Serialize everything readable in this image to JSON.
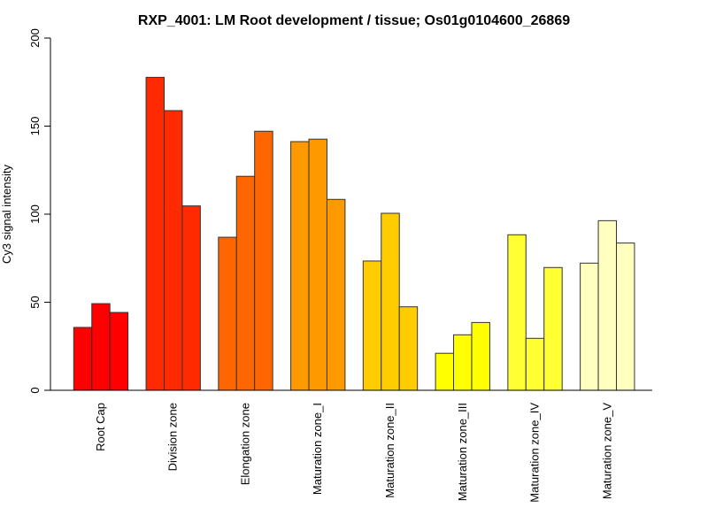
{
  "chart_data": {
    "type": "bar",
    "title": "RXP_4001: LM Root development / tissue; Os01g0104600_26869",
    "xlabel": "",
    "ylabel": "Cy3 signal intensity",
    "ylim": [
      0,
      200
    ],
    "yticks": [
      0,
      50,
      100,
      150,
      200
    ],
    "ytick_labels": [
      "0",
      "50",
      "100",
      "150",
      "200"
    ],
    "grid": false,
    "legend": "none",
    "bars_per_group": 3,
    "categories": [
      "Root Cap",
      "Division zone",
      "Elongation zone",
      "Maturation zone_I",
      "Maturation zone_II",
      "Maturation zone_III",
      "Maturation zone_IV",
      "Maturation zone_V"
    ],
    "group_colors": [
      "#FF0000",
      "#FF2A00",
      "#FF6600",
      "#FF9900",
      "#FFCC00",
      "#FFFF00",
      "#FFFF33",
      "#FFFFBF"
    ],
    "groups": [
      {
        "name": "Root Cap",
        "values": [
          35.7,
          49.2,
          44.2
        ]
      },
      {
        "name": "Division zone",
        "values": [
          177.7,
          158.8,
          104.7
        ]
      },
      {
        "name": "Elongation zone",
        "values": [
          86.9,
          121.5,
          147.1
        ]
      },
      {
        "name": "Maturation zone_I",
        "values": [
          141.2,
          142.6,
          108.4
        ]
      },
      {
        "name": "Maturation zone_II",
        "values": [
          73.4,
          100.5,
          47.4
        ]
      },
      {
        "name": "Maturation zone_III",
        "values": [
          21.0,
          31.5,
          38.5
        ]
      },
      {
        "name": "Maturation zone_IV",
        "values": [
          88.3,
          29.5,
          69.7
        ]
      },
      {
        "name": "Maturation zone_V",
        "values": [
          72.2,
          96.3,
          83.6
        ]
      }
    ]
  }
}
